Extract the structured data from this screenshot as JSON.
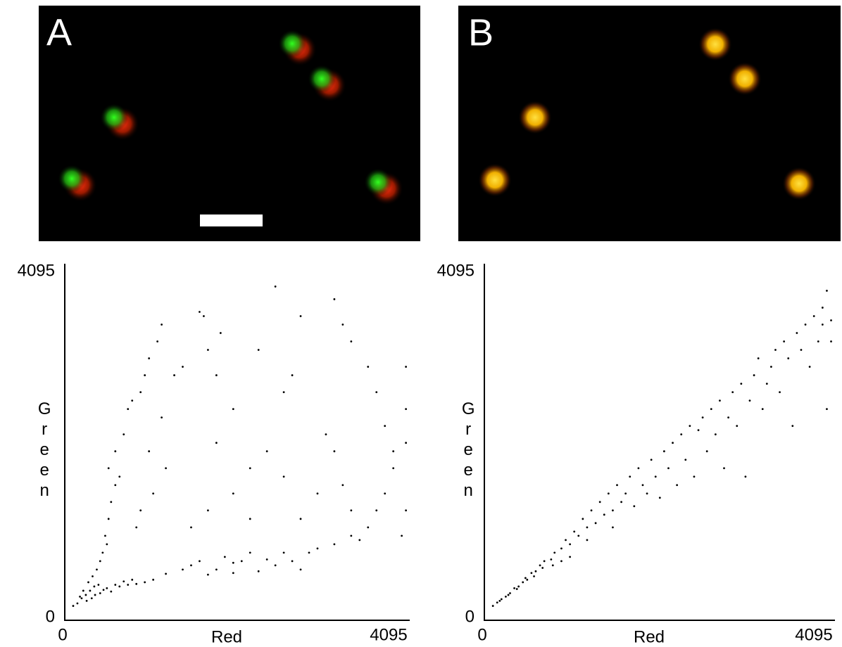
{
  "panels": [
    {
      "label": "A"
    },
    {
      "label": "B"
    }
  ],
  "chart_data": [
    {
      "type": "scatter",
      "x_label": "Red",
      "y_label": "Green",
      "color": "#000000",
      "xlim": [
        0,
        4095
      ],
      "ylim": [
        0,
        4095
      ],
      "xticks": [
        0,
        4095
      ],
      "yticks": [
        0,
        4095
      ],
      "x": [
        100,
        150,
        200,
        250,
        300,
        350,
        400,
        180,
        220,
        280,
        330,
        380,
        420,
        450,
        500,
        320,
        420,
        500,
        600,
        700,
        800,
        260,
        360,
        460,
        550,
        650,
        750,
        850,
        950,
        1050,
        480,
        520,
        550,
        600,
        520,
        600,
        650,
        700,
        750,
        800,
        900,
        950,
        1000,
        1100,
        1150,
        1000,
        1050,
        900,
        850,
        1150,
        1200,
        1300,
        1400,
        1600,
        1650,
        1700,
        1800,
        1850,
        1200,
        1400,
        1500,
        1600,
        1800,
        1900,
        2000,
        2100,
        2200,
        2400,
        2500,
        2600,
        2700,
        2900,
        3000,
        3200,
        3400,
        3600,
        3700,
        3800,
        3900,
        4000,
        3500,
        2800,
        2300,
        2000,
        1700,
        1500,
        1700,
        2000,
        2200,
        2600,
        2800,
        3000,
        3200,
        3400,
        2400,
        2000,
        1800,
        2700,
        2300,
        2500,
        2800,
        3200,
        3300,
        3400,
        3600,
        3700,
        3800,
        3900,
        4050,
        4050,
        4050,
        4050,
        2200,
        2600,
        3100,
        3300
      ],
      "y": [
        170,
        200,
        260,
        300,
        350,
        400,
        420,
        280,
        350,
        450,
        520,
        600,
        700,
        800,
        900,
        260,
        320,
        380,
        420,
        460,
        480,
        230,
        300,
        360,
        340,
        400,
        420,
        430,
        450,
        480,
        1000,
        1200,
        1400,
        1600,
        1800,
        2000,
        1700,
        2200,
        2500,
        2600,
        2700,
        2900,
        3100,
        3300,
        3500,
        2000,
        1500,
        1300,
        1100,
        2400,
        1800,
        2900,
        3000,
        3650,
        3600,
        3200,
        2900,
        3400,
        550,
        600,
        650,
        700,
        600,
        750,
        680,
        700,
        800,
        720,
        650,
        800,
        700,
        800,
        850,
        900,
        1000,
        1100,
        1300,
        1500,
        1800,
        1000,
        950,
        600,
        580,
        560,
        540,
        1100,
        1300,
        1500,
        1800,
        1700,
        1200,
        1500,
        2000,
        1300,
        2000,
        2500,
        2100,
        2900,
        3200,
        3950,
        3600,
        3800,
        3500,
        3300,
        3000,
        2700,
        2300,
        2000,
        2500,
        2100,
        3000,
        1300,
        1200,
        2700,
        2200,
        1600
      ]
    },
    {
      "type": "scatter",
      "x_label": "Red",
      "y_label": "Green",
      "color": "#000000",
      "xlim": [
        0,
        4095
      ],
      "ylim": [
        0,
        4095
      ],
      "xticks": [
        0,
        4095
      ],
      "yticks": [
        0,
        4095
      ],
      "x": [
        100,
        150,
        200,
        250,
        300,
        350,
        400,
        450,
        500,
        550,
        600,
        650,
        700,
        180,
        280,
        380,
        480,
        580,
        680,
        780,
        820,
        900,
        950,
        1000,
        1050,
        1100,
        1150,
        1200,
        1250,
        1300,
        1350,
        1400,
        1450,
        1500,
        1550,
        1600,
        1650,
        1700,
        1750,
        1800,
        1850,
        1900,
        1950,
        2000,
        2050,
        2100,
        2150,
        2200,
        2250,
        2300,
        2350,
        2400,
        2450,
        2500,
        2550,
        2600,
        2650,
        2700,
        2750,
        2800,
        2850,
        2900,
        2950,
        3000,
        3050,
        3100,
        3150,
        3200,
        3250,
        3300,
        3350,
        3400,
        3450,
        3500,
        3550,
        3600,
        3650,
        3700,
        3750,
        3800,
        3850,
        3900,
        3950,
        4000,
        4050,
        4050,
        4000,
        3950,
        1000,
        1200,
        1500,
        900,
        800
      ],
      "y": [
        170,
        210,
        250,
        280,
        320,
        380,
        400,
        450,
        480,
        560,
        580,
        650,
        700,
        230,
        300,
        370,
        500,
        520,
        620,
        720,
        800,
        850,
        950,
        900,
        1050,
        1000,
        1200,
        1100,
        1300,
        1150,
        1400,
        1250,
        1500,
        1300,
        1600,
        1400,
        1500,
        1700,
        1350,
        1800,
        1600,
        1500,
        1900,
        1700,
        1450,
        2000,
        1800,
        2100,
        1600,
        2200,
        1900,
        2300,
        1700,
        2250,
        2400,
        2000,
        2500,
        2200,
        2600,
        1800,
        2400,
        2700,
        2300,
        2800,
        1700,
        2600,
        2900,
        3100,
        2500,
        2800,
        3000,
        3200,
        2700,
        3300,
        3100,
        2300,
        3400,
        3200,
        3500,
        3000,
        3600,
        3300,
        3700,
        2500,
        3550,
        3300,
        3900,
        3500,
        750,
        950,
        1100,
        700,
        650
      ]
    }
  ]
}
